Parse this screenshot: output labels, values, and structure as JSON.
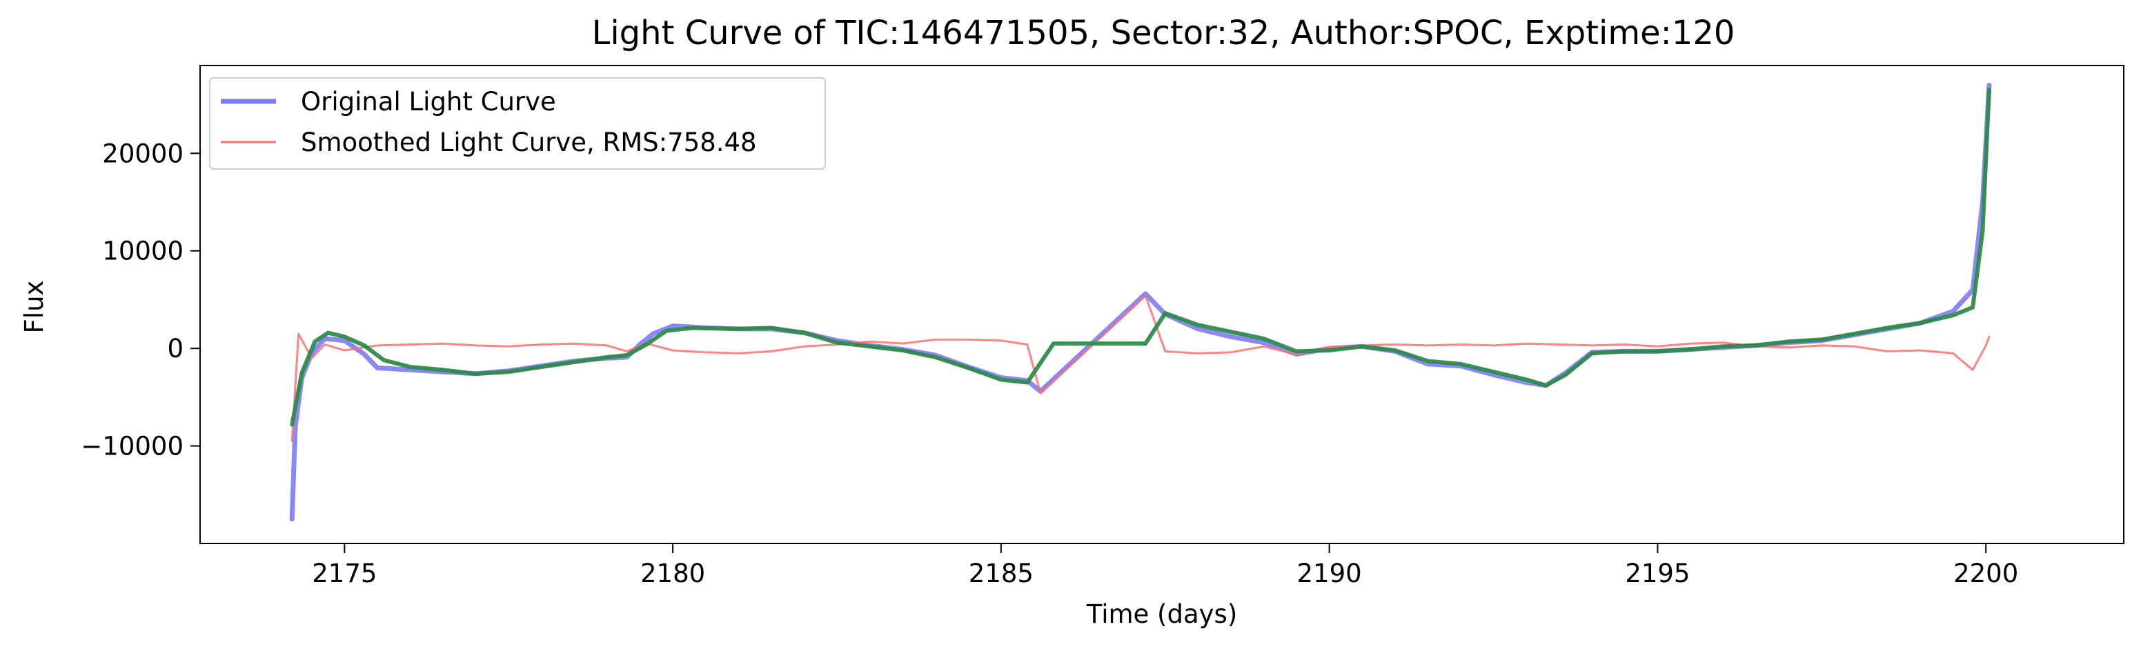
{
  "chart_data": {
    "type": "line",
    "title": "Light Curve of TIC:146471505, Sector:32, Author:SPOC, Exptime:120",
    "xlabel": "Time (days)",
    "ylabel": "Flux",
    "xlim": [
      2172.8,
      2202.1
    ],
    "ylim": [
      -20000,
      29000
    ],
    "x_ticks": [
      2175,
      2180,
      2185,
      2190,
      2195,
      2200
    ],
    "y_ticks": [
      -10000,
      0,
      10000,
      20000
    ],
    "grid": false,
    "legend_position": "top-left",
    "series": [
      {
        "name": "Original Light Curve",
        "color": "#7b7bf5",
        "points": [
          [
            2174.2,
            -17500
          ],
          [
            2174.25,
            -8000
          ],
          [
            2174.35,
            -3000
          ],
          [
            2174.5,
            -500
          ],
          [
            2174.7,
            1000
          ],
          [
            2175.0,
            800
          ],
          [
            2175.3,
            -600
          ],
          [
            2175.5,
            -2000
          ],
          [
            2176.0,
            -2200
          ],
          [
            2176.5,
            -2400
          ],
          [
            2177.0,
            -2600
          ],
          [
            2177.5,
            -2300
          ],
          [
            2178.0,
            -1800
          ],
          [
            2178.5,
            -1300
          ],
          [
            2179.0,
            -1000
          ],
          [
            2179.3,
            -900
          ],
          [
            2179.5,
            400
          ],
          [
            2179.7,
            1500
          ],
          [
            2180.0,
            2300
          ],
          [
            2180.5,
            2100
          ],
          [
            2181.0,
            2000
          ],
          [
            2181.5,
            2000
          ],
          [
            2182.0,
            1600
          ],
          [
            2182.5,
            800
          ],
          [
            2183.0,
            300
          ],
          [
            2183.5,
            -100
          ],
          [
            2184.0,
            -700
          ],
          [
            2184.5,
            -1900
          ],
          [
            2185.0,
            -3000
          ],
          [
            2185.4,
            -3300
          ],
          [
            2185.6,
            -4400
          ],
          [
            2187.2,
            5600
          ],
          [
            2187.5,
            3500
          ],
          [
            2188.0,
            2000
          ],
          [
            2188.5,
            1200
          ],
          [
            2189.0,
            600
          ],
          [
            2189.5,
            -600
          ],
          [
            2190.0,
            0
          ],
          [
            2190.5,
            200
          ],
          [
            2191.0,
            -300
          ],
          [
            2191.5,
            -1600
          ],
          [
            2192.0,
            -1800
          ],
          [
            2192.5,
            -2700
          ],
          [
            2193.0,
            -3500
          ],
          [
            2193.3,
            -3800
          ],
          [
            2193.6,
            -2500
          ],
          [
            2194.0,
            -400
          ],
          [
            2194.5,
            -300
          ],
          [
            2195.0,
            -300
          ],
          [
            2195.5,
            -100
          ],
          [
            2196.0,
            100
          ],
          [
            2196.5,
            300
          ],
          [
            2197.0,
            600
          ],
          [
            2197.5,
            800
          ],
          [
            2198.0,
            1400
          ],
          [
            2198.5,
            2000
          ],
          [
            2199.0,
            2600
          ],
          [
            2199.5,
            3800
          ],
          [
            2199.8,
            6000
          ],
          [
            2199.95,
            15000
          ],
          [
            2200.05,
            27000
          ]
        ]
      },
      {
        "name": "Smoothed Light Curve, RMS:758.48",
        "color": "#ff6e6e",
        "points": [
          [
            2174.2,
            -9500
          ],
          [
            2174.3,
            1500
          ],
          [
            2174.5,
            -1000
          ],
          [
            2174.7,
            400
          ],
          [
            2175.0,
            -200
          ],
          [
            2175.5,
            300
          ],
          [
            2176.0,
            400
          ],
          [
            2176.5,
            500
          ],
          [
            2177.0,
            300
          ],
          [
            2177.5,
            200
          ],
          [
            2178.0,
            400
          ],
          [
            2178.5,
            500
          ],
          [
            2179.0,
            300
          ],
          [
            2179.3,
            -300
          ],
          [
            2179.6,
            500
          ],
          [
            2180.0,
            -200
          ],
          [
            2180.5,
            -400
          ],
          [
            2181.0,
            -500
          ],
          [
            2181.5,
            -300
          ],
          [
            2182.0,
            200
          ],
          [
            2182.5,
            400
          ],
          [
            2183.0,
            700
          ],
          [
            2183.5,
            500
          ],
          [
            2184.0,
            900
          ],
          [
            2184.5,
            900
          ],
          [
            2185.0,
            800
          ],
          [
            2185.4,
            400
          ],
          [
            2185.6,
            -4600
          ],
          [
            2187.2,
            5400
          ],
          [
            2187.5,
            -300
          ],
          [
            2188.0,
            -500
          ],
          [
            2188.5,
            -400
          ],
          [
            2189.0,
            200
          ],
          [
            2189.5,
            -600
          ],
          [
            2190.0,
            100
          ],
          [
            2190.5,
            300
          ],
          [
            2191.0,
            400
          ],
          [
            2191.5,
            300
          ],
          [
            2192.0,
            400
          ],
          [
            2192.5,
            300
          ],
          [
            2193.0,
            500
          ],
          [
            2193.5,
            400
          ],
          [
            2194.0,
            300
          ],
          [
            2194.5,
            400
          ],
          [
            2195.0,
            200
          ],
          [
            2195.5,
            500
          ],
          [
            2196.0,
            600
          ],
          [
            2196.5,
            200
          ],
          [
            2197.0,
            100
          ],
          [
            2197.5,
            300
          ],
          [
            2198.0,
            200
          ],
          [
            2198.5,
            -300
          ],
          [
            2199.0,
            -200
          ],
          [
            2199.5,
            -500
          ],
          [
            2199.8,
            -2200
          ],
          [
            2200.0,
            300
          ],
          [
            2200.05,
            1200
          ]
        ]
      },
      {
        "name": "",
        "color": "#2e8b4a",
        "points": [
          [
            2174.2,
            -7800
          ],
          [
            2174.35,
            -2500
          ],
          [
            2174.55,
            700
          ],
          [
            2174.75,
            1600
          ],
          [
            2175.0,
            1200
          ],
          [
            2175.3,
            300
          ],
          [
            2175.6,
            -1200
          ],
          [
            2176.0,
            -1900
          ],
          [
            2176.5,
            -2200
          ],
          [
            2177.0,
            -2600
          ],
          [
            2177.5,
            -2400
          ],
          [
            2178.0,
            -1900
          ],
          [
            2178.5,
            -1400
          ],
          [
            2179.0,
            -900
          ],
          [
            2179.3,
            -700
          ],
          [
            2179.6,
            400
          ],
          [
            2179.9,
            1800
          ],
          [
            2180.3,
            2100
          ],
          [
            2181.0,
            2000
          ],
          [
            2181.5,
            2100
          ],
          [
            2182.0,
            1600
          ],
          [
            2182.5,
            600
          ],
          [
            2183.0,
            200
          ],
          [
            2183.5,
            -200
          ],
          [
            2184.0,
            -900
          ],
          [
            2184.5,
            -2000
          ],
          [
            2185.0,
            -3200
          ],
          [
            2185.4,
            -3500
          ],
          [
            2185.8,
            500
          ],
          [
            2187.2,
            500
          ],
          [
            2187.5,
            3600
          ],
          [
            2188.0,
            2400
          ],
          [
            2188.5,
            1700
          ],
          [
            2189.0,
            1000
          ],
          [
            2189.5,
            -300
          ],
          [
            2190.0,
            -200
          ],
          [
            2190.5,
            200
          ],
          [
            2191.0,
            -200
          ],
          [
            2191.5,
            -1300
          ],
          [
            2192.0,
            -1600
          ],
          [
            2192.5,
            -2400
          ],
          [
            2193.0,
            -3200
          ],
          [
            2193.3,
            -3800
          ],
          [
            2193.6,
            -2700
          ],
          [
            2194.0,
            -500
          ],
          [
            2194.5,
            -300
          ],
          [
            2195.0,
            -300
          ],
          [
            2195.5,
            -100
          ],
          [
            2196.0,
            200
          ],
          [
            2196.5,
            300
          ],
          [
            2197.0,
            700
          ],
          [
            2197.5,
            900
          ],
          [
            2198.0,
            1500
          ],
          [
            2198.5,
            2100
          ],
          [
            2199.0,
            2600
          ],
          [
            2199.5,
            3400
          ],
          [
            2199.8,
            4200
          ],
          [
            2199.95,
            12000
          ],
          [
            2200.05,
            26500
          ]
        ]
      }
    ]
  }
}
